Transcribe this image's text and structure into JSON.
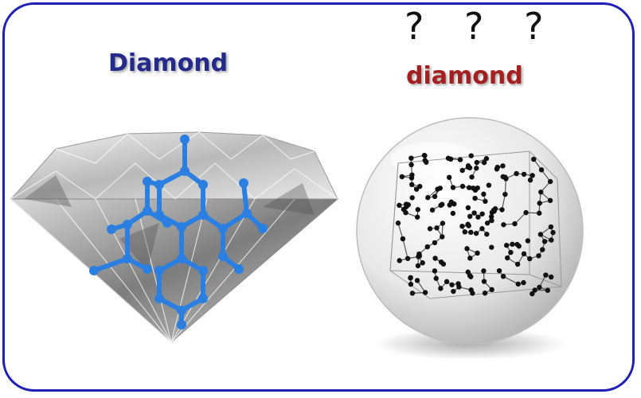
{
  "labels": {
    "crystal": "Diamond",
    "amorphous": "diamond",
    "question_marks": "? ? ?"
  },
  "colors": {
    "frame": "#1f1fb4",
    "crystal_label": "#232a8a",
    "amorphous_label": "#a42020",
    "lattice_atom": "#2b7fe0",
    "amorphous_atom": "#111111"
  },
  "icons": {
    "left": "diamond-gem-with-crystal-lattice",
    "right": "glass-sphere-with-amorphous-network"
  }
}
